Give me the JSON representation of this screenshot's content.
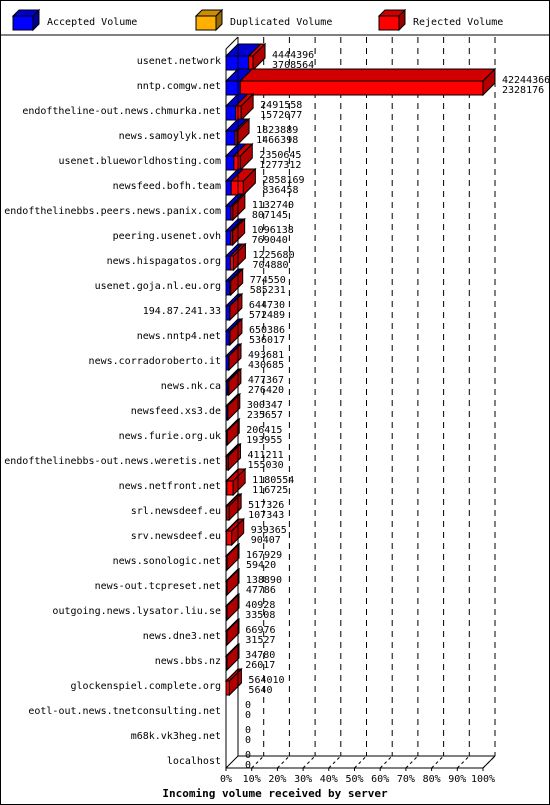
{
  "colors": {
    "accepted": "#0000ff",
    "duplicated": "#ffb000",
    "rejected": "#ff0000",
    "rejected_side": "#b00000",
    "rejected_top": "#d00000",
    "accepted_side": "#0000a0"
  },
  "chart_data": {
    "type": "bar",
    "orientation": "horizontal",
    "stacked": true,
    "three_d": true,
    "title": "Incoming volume received by server",
    "legend": [
      "Accepted Volume",
      "Duplicated Volume",
      "Rejected Volume"
    ],
    "legend_position": "top",
    "xlim": [
      0,
      100
    ],
    "x_ticks": [
      "0%",
      "10%",
      "20%",
      "30%",
      "40%",
      "50%",
      "60%",
      "70%",
      "80%",
      "90%",
      "100%"
    ],
    "grid": "vertical dashed",
    "categories": [
      "usenet.network",
      "nntp.comgw.net",
      "endoftheline-out.news.chmurka.net",
      "news.samoylyk.net",
      "usenet.blueworldhosting.com",
      "newsfeed.bofh.team",
      "endofthelinebbs.peers.news.panix.com",
      "peering.usenet.ovh",
      "news.hispagatos.org",
      "usenet.goja.nl.eu.org",
      "194.87.241.33",
      "news.nntp4.net",
      "news.corradoroberto.it",
      "news.nk.ca",
      "newsfeed.xs3.de",
      "news.furie.org.uk",
      "endofthelinebbs-out.news.weretis.net",
      "news.netfront.net",
      "srl.newsdeef.eu",
      "srv.newsdeef.eu",
      "news.sonologic.net",
      "news-out.tcpreset.net",
      "outgoing.news.lysator.liu.se",
      "news.dne3.net",
      "news.bbs.nz",
      "glockenspiel.complete.org",
      "eotl-out.news.tnetconsulting.net",
      "m68k.vk3heg.net",
      "localhost"
    ],
    "total_labels": [
      "4444396",
      "42244366",
      "2491558",
      "1823889",
      "2350645",
      "2858169",
      "1132740",
      "1096138",
      "1225680",
      "774550",
      "644730",
      "650386",
      "493681",
      "477367",
      "300347",
      "206415",
      "411211",
      "1180554",
      "517326",
      "939365",
      "167929",
      "138890",
      "40928",
      "66976",
      "34780",
      "564010",
      "0",
      "0",
      "0"
    ],
    "accepted_labels": [
      "3708564",
      "2328176",
      "1572077",
      "1466398",
      "1277312",
      "836458",
      "807145",
      "769040",
      "704880",
      "585231",
      "572489",
      "536017",
      "430685",
      "276420",
      "235657",
      "193955",
      "155030",
      "116725",
      "107343",
      "90407",
      "59420",
      "47786",
      "33508",
      "31527",
      "26017",
      "5640",
      "0",
      "0",
      "0"
    ],
    "total": [
      4444396,
      42244366,
      2491558,
      1823889,
      2350645,
      2858169,
      1132740,
      1096138,
      1225680,
      774550,
      644730,
      650386,
      493681,
      477367,
      300347,
      206415,
      411211,
      1180554,
      517326,
      939365,
      167929,
      138890,
      40928,
      66976,
      34780,
      564010,
      0,
      0,
      0
    ],
    "accepted": [
      3708564,
      2328176,
      1572077,
      1466398,
      1277312,
      836458,
      807145,
      769040,
      704880,
      585231,
      572489,
      536017,
      430685,
      276420,
      235657,
      193955,
      155030,
      116725,
      107343,
      90407,
      59420,
      47786,
      33508,
      31527,
      26017,
      5640,
      0,
      0,
      0
    ]
  }
}
